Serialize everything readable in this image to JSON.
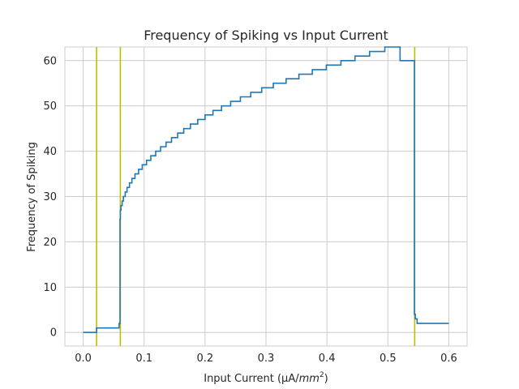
{
  "chart_data": {
    "type": "line",
    "title": "Frequency of Spiking vs Input Current",
    "xlabel_main": "Input Current (μA/",
    "xlabel_italic": "mm",
    "xlabel_sup": "2",
    "xlabel_close": ")",
    "ylabel": "Frequency of Spiking",
    "xlim": [
      -0.03,
      0.63
    ],
    "ylim": [
      -3,
      63
    ],
    "xticks": [
      0.0,
      0.1,
      0.2,
      0.3,
      0.4,
      0.5,
      0.6
    ],
    "xtick_labels": [
      "0.0",
      "0.1",
      "0.2",
      "0.3",
      "0.4",
      "0.5",
      "0.6"
    ],
    "yticks": [
      0,
      10,
      20,
      30,
      40,
      50,
      60
    ],
    "ytick_labels": [
      "0",
      "10",
      "20",
      "30",
      "40",
      "50",
      "60"
    ],
    "grid": true,
    "line_color": "#1f77b4",
    "vline_color": "#bfbf00",
    "vlines": [
      0.022,
      0.061,
      0.544
    ],
    "series": [
      {
        "x": [
          0.0,
          0.022,
          0.059,
          0.0605,
          0.061,
          0.062,
          0.064,
          0.066,
          0.069,
          0.072,
          0.076,
          0.08,
          0.085,
          0.091,
          0.097,
          0.104,
          0.111,
          0.119,
          0.127,
          0.136,
          0.145,
          0.155,
          0.165,
          0.176,
          0.188,
          0.2,
          0.213,
          0.227,
          0.242,
          0.258,
          0.275,
          0.293,
          0.312,
          0.333,
          0.354,
          0.376,
          0.399,
          0.423,
          0.446,
          0.47,
          0.495,
          0.52,
          0.5435,
          0.545,
          0.548,
          0.563,
          0.6
        ],
        "y": [
          0,
          1,
          2,
          25,
          27,
          28,
          29,
          30,
          31,
          32,
          33,
          34,
          35,
          36,
          37,
          38,
          39,
          40,
          41,
          42,
          43,
          44,
          45,
          46,
          47,
          48,
          49,
          50,
          51,
          52,
          53,
          54,
          55,
          56,
          57,
          58,
          59,
          60,
          61,
          62,
          63,
          60,
          4,
          3,
          2,
          2,
          2
        ]
      }
    ]
  }
}
